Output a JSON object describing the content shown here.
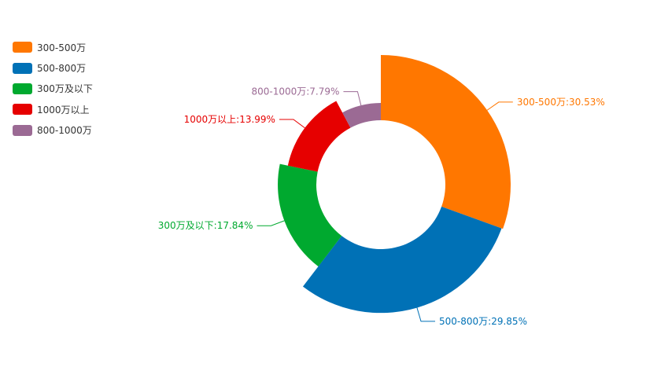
{
  "chart_data": {
    "type": "pie",
    "variant": "rose-donut",
    "legend_position": "top-left",
    "slices": [
      {
        "name": "300-500万",
        "value": 30.53,
        "label": "300-500万:30.53%",
        "color": "#ff7700"
      },
      {
        "name": "500-800万",
        "value": 29.85,
        "label": "500-800万:29.85%",
        "color": "#0071b6"
      },
      {
        "name": "300万及以下",
        "value": 17.84,
        "label": "300万及以下:17.84%",
        "color": "#00a92f"
      },
      {
        "name": "1000万以上",
        "value": 13.99,
        "label": "1000万以上:13.99%",
        "color": "#e60000"
      },
      {
        "name": "800-1000万",
        "value": 7.79,
        "label": "800-1000万:7.79%",
        "color": "#9b6a94"
      }
    ]
  }
}
